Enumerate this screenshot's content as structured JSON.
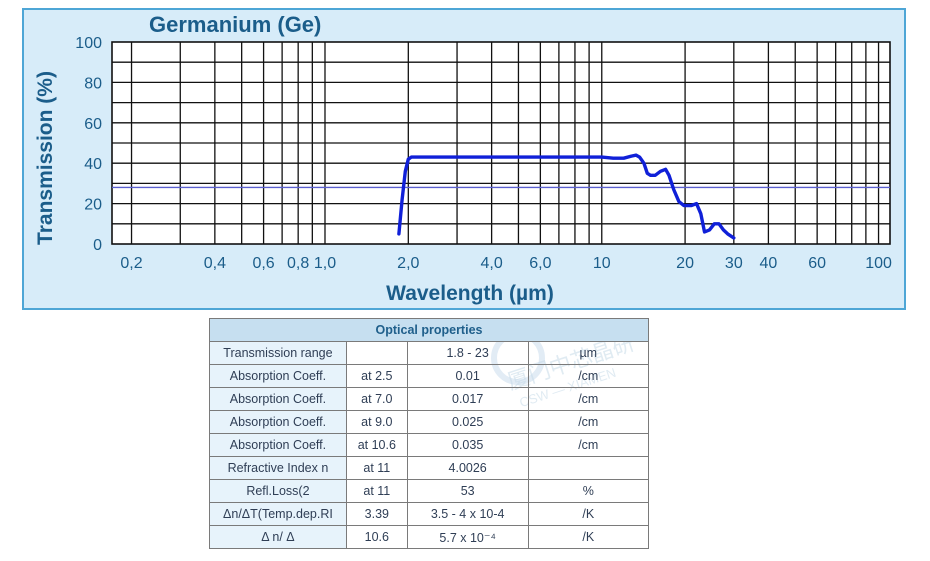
{
  "chart_data": {
    "type": "line",
    "title": "Germanium (Ge)",
    "xlabel": "Wavelength (µm)",
    "ylabel": "Transmission (%)",
    "x_scale": "log",
    "xlim": [
      0.17,
      110
    ],
    "ylim": [
      0,
      100
    ],
    "y_ticks": [
      0,
      20,
      40,
      60,
      80,
      100
    ],
    "x_tick_values": [
      0.2,
      0.4,
      0.6,
      0.8,
      1.0,
      2.0,
      4.0,
      6.0,
      10,
      20,
      30,
      40,
      60,
      100
    ],
    "x_tick_labels": [
      "0,2",
      "0,4",
      "0,6",
      "0,8",
      "1,0",
      "2,0",
      "4,0",
      "6,0",
      "10",
      "20",
      "30",
      "40",
      "60",
      "100"
    ],
    "reference_line_y": 28,
    "grid": true,
    "series": [
      {
        "name": "Transmission",
        "color": "#1020d8",
        "x": [
          1.85,
          1.9,
          1.95,
          2.0,
          2.05,
          2.3,
          3.0,
          5.0,
          8.0,
          10.0,
          11.0,
          12.0,
          12.8,
          13.3,
          13.7,
          14.2,
          14.6,
          15.0,
          15.6,
          16.3,
          17.0,
          17.5,
          18.2,
          19.0,
          19.8,
          21.0,
          22.0,
          22.8,
          23.5,
          24.5,
          25.5,
          26.5,
          27.5,
          28.5,
          30.0
        ],
        "y": [
          5,
          22,
          36,
          42,
          43,
          43,
          43,
          43,
          43,
          43,
          42.5,
          42.5,
          43.5,
          44,
          43,
          40,
          35,
          34,
          34,
          36,
          37,
          34,
          27,
          21,
          19,
          19,
          20,
          15,
          6,
          7,
          10,
          10,
          7,
          5,
          3
        ]
      }
    ]
  },
  "table": {
    "header": "Optical properties",
    "rows": [
      [
        "Transmission range",
        "",
        "1.8 - 23",
        "µm"
      ],
      [
        "Absorption Coeff.",
        "at 2.5",
        "0.01",
        "/cm"
      ],
      [
        "Absorption Coeff.",
        "at 7.0",
        "0.017",
        "/cm"
      ],
      [
        "Absorption Coeff.",
        "at 9.0",
        "0.025",
        "/cm"
      ],
      [
        "Absorption Coeff.",
        "at 10.6",
        "0.035",
        "/cm"
      ],
      [
        "Refractive Index n",
        "at 11",
        "4.0026",
        ""
      ],
      [
        "Refl.Loss(2",
        "at 11",
        "53",
        "%"
      ],
      [
        "Δn/ΔT(Temp.dep.RI",
        "3.39",
        "3.5 - 4 x 10-4",
        "/K"
      ],
      [
        "Δ n/ Δ",
        "10.6",
        "5.7 x 10⁻⁴",
        "/K"
      ]
    ]
  },
  "watermark": {
    "text": "厦门中芯晶研",
    "subtext": "CSW — XIAMEN"
  },
  "colors": {
    "panel_bg": "#d7ecf9",
    "panel_border": "#4ea6d6",
    "text_blue": "#1b5d8a",
    "line": "#1020d8"
  }
}
